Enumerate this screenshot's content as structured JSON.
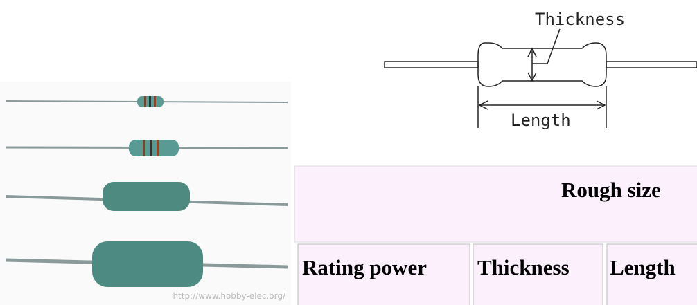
{
  "photo": {
    "watermark": "http://www.hobby-elec.org/"
  },
  "diagram": {
    "thickness_label": "Thickness",
    "length_label": "Length"
  },
  "table": {
    "title": "Rough size",
    "headers": [
      "Rating power",
      "Thickness",
      "Length"
    ]
  }
}
